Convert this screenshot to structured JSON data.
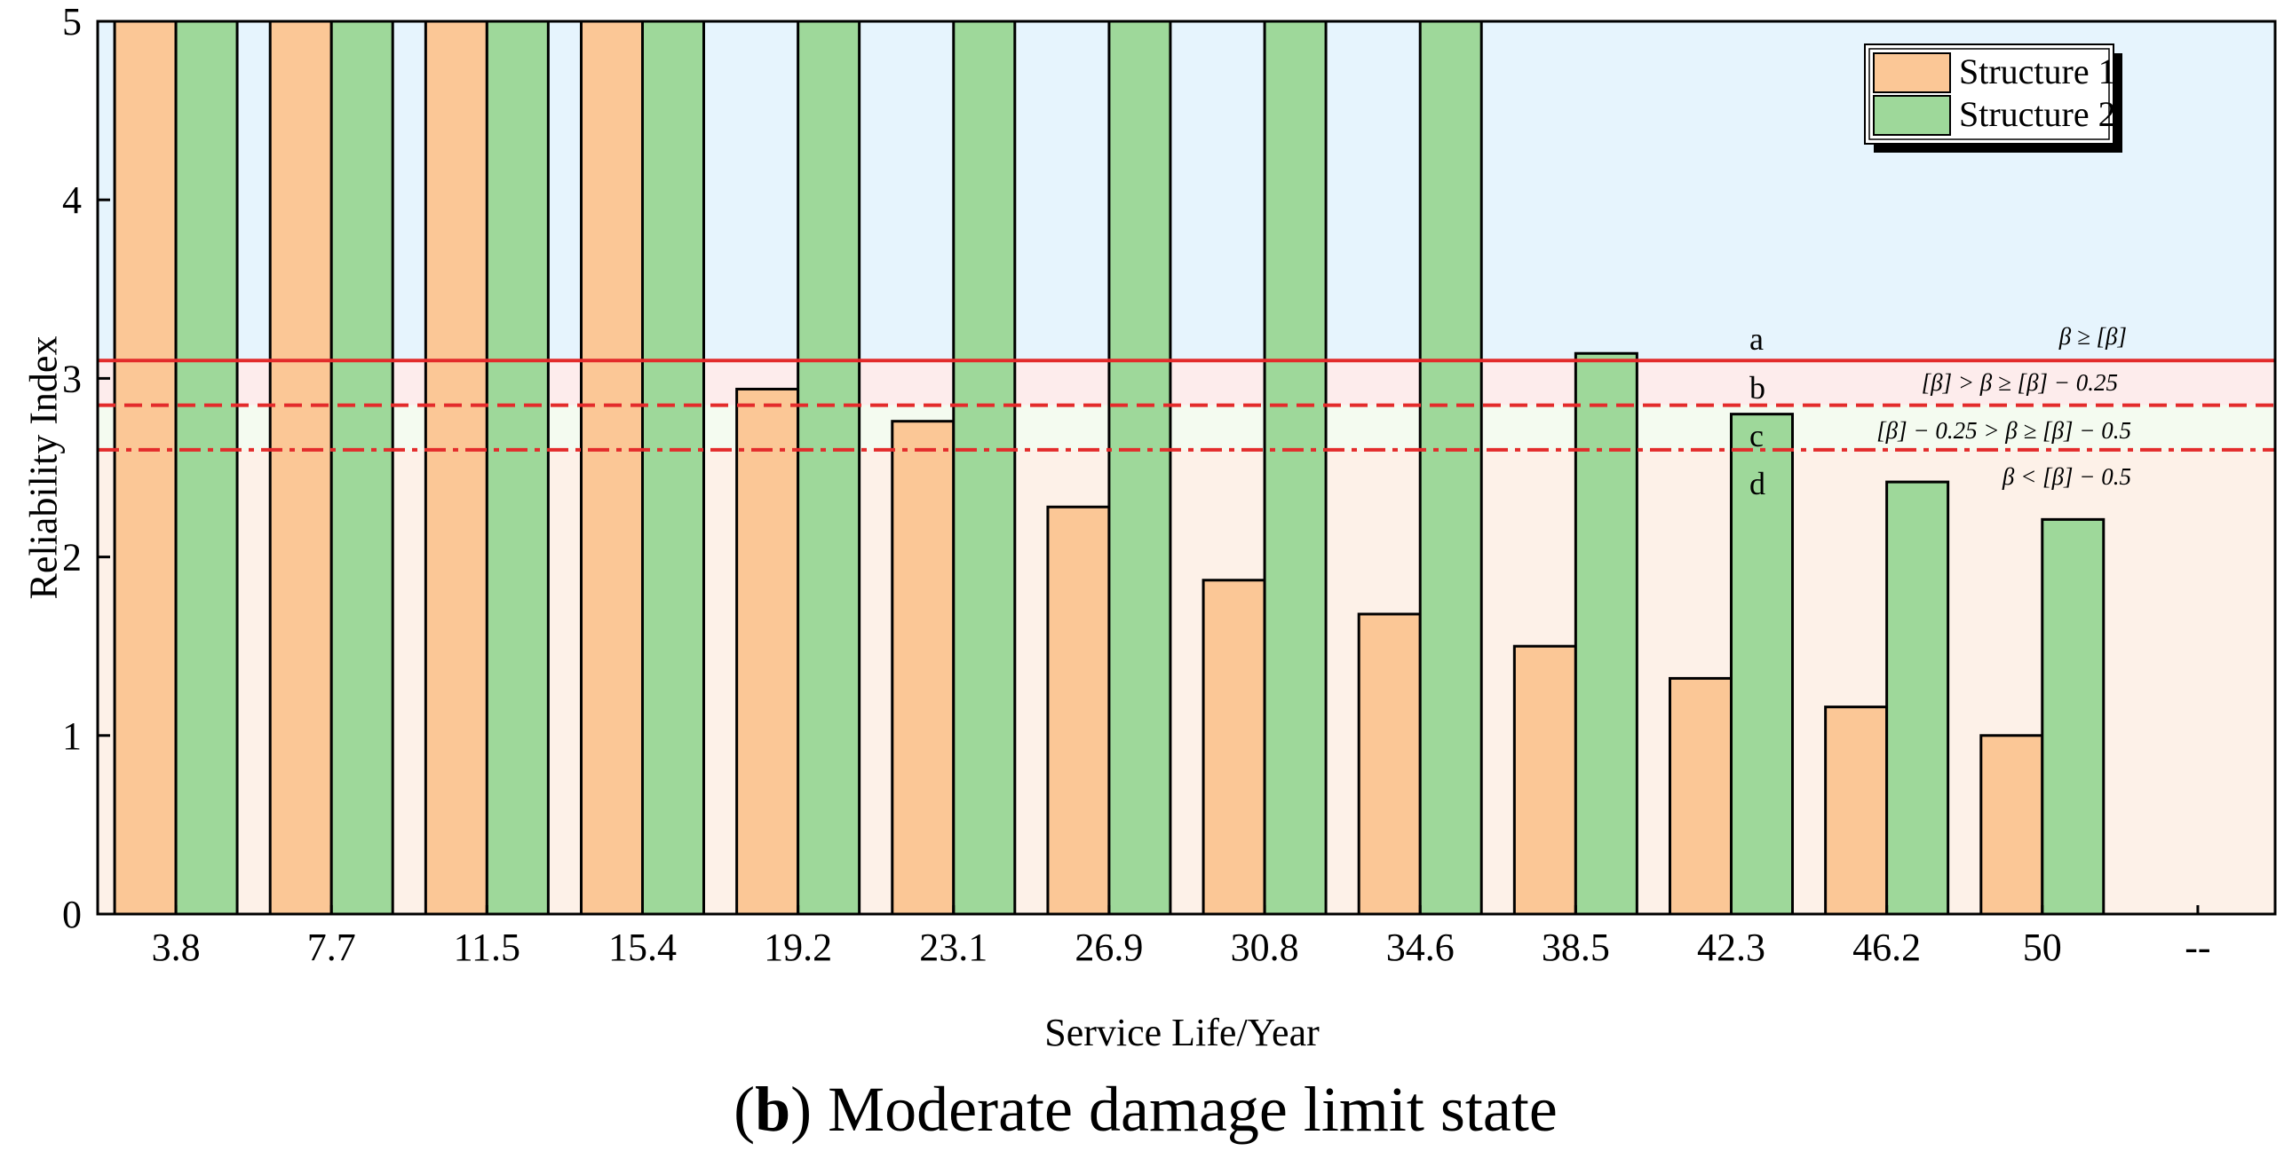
{
  "chart_data": {
    "type": "bar",
    "xlabel": "Service Life/Year",
    "ylabel": "Reliability Index",
    "ylim": [
      0,
      5
    ],
    "yticks": [
      0,
      1,
      2,
      3,
      4,
      5
    ],
    "categories": [
      "3.8",
      "7.7",
      "11.5",
      "15.4",
      "19.2",
      "23.1",
      "26.9",
      "30.8",
      "34.6",
      "38.5",
      "42.3",
      "46.2",
      "50",
      "--"
    ],
    "series": [
      {
        "name": "Structure 1",
        "color": "#fbc796",
        "values": [
          5,
          5,
          5,
          5,
          2.94,
          2.76,
          2.28,
          1.87,
          1.68,
          1.5,
          1.32,
          1.16,
          1.0,
          null
        ]
      },
      {
        "name": "Structure 2",
        "color": "#9ed89a",
        "values": [
          5,
          5,
          5,
          5,
          5,
          5,
          5,
          5,
          5,
          3.14,
          2.8,
          2.42,
          2.21,
          null
        ]
      }
    ],
    "thresholds": [
      {
        "name": "solid",
        "value": 3.1,
        "style": "solid",
        "color": "#e32b2b"
      },
      {
        "name": "dashed",
        "value": 2.85,
        "style": "dashed",
        "color": "#e32b2b"
      },
      {
        "name": "dashdot",
        "value": 2.6,
        "style": "dashdot",
        "color": "#e32b2b"
      }
    ],
    "zones": [
      {
        "letter": "a",
        "condition": "β ≥ [β]",
        "from": 3.1,
        "to": 5,
        "color": "#e6f4fd"
      },
      {
        "letter": "b",
        "condition": "[β] > β ≥ [β] − 0.25",
        "from": 2.85,
        "to": 3.1,
        "color": "#fdecec"
      },
      {
        "letter": "c",
        "condition": "[β] − 0.25 > β ≥ [β] − 0.5",
        "from": 2.6,
        "to": 2.85,
        "color": "#f4fbf0"
      },
      {
        "letter": "d",
        "condition": "β < [β] − 0.5",
        "from": 0,
        "to": 2.6,
        "color": "#fdf1e8"
      }
    ],
    "legend_position": "top-right"
  },
  "caption": {
    "label": "b",
    "text": "Moderate damage limit state"
  }
}
